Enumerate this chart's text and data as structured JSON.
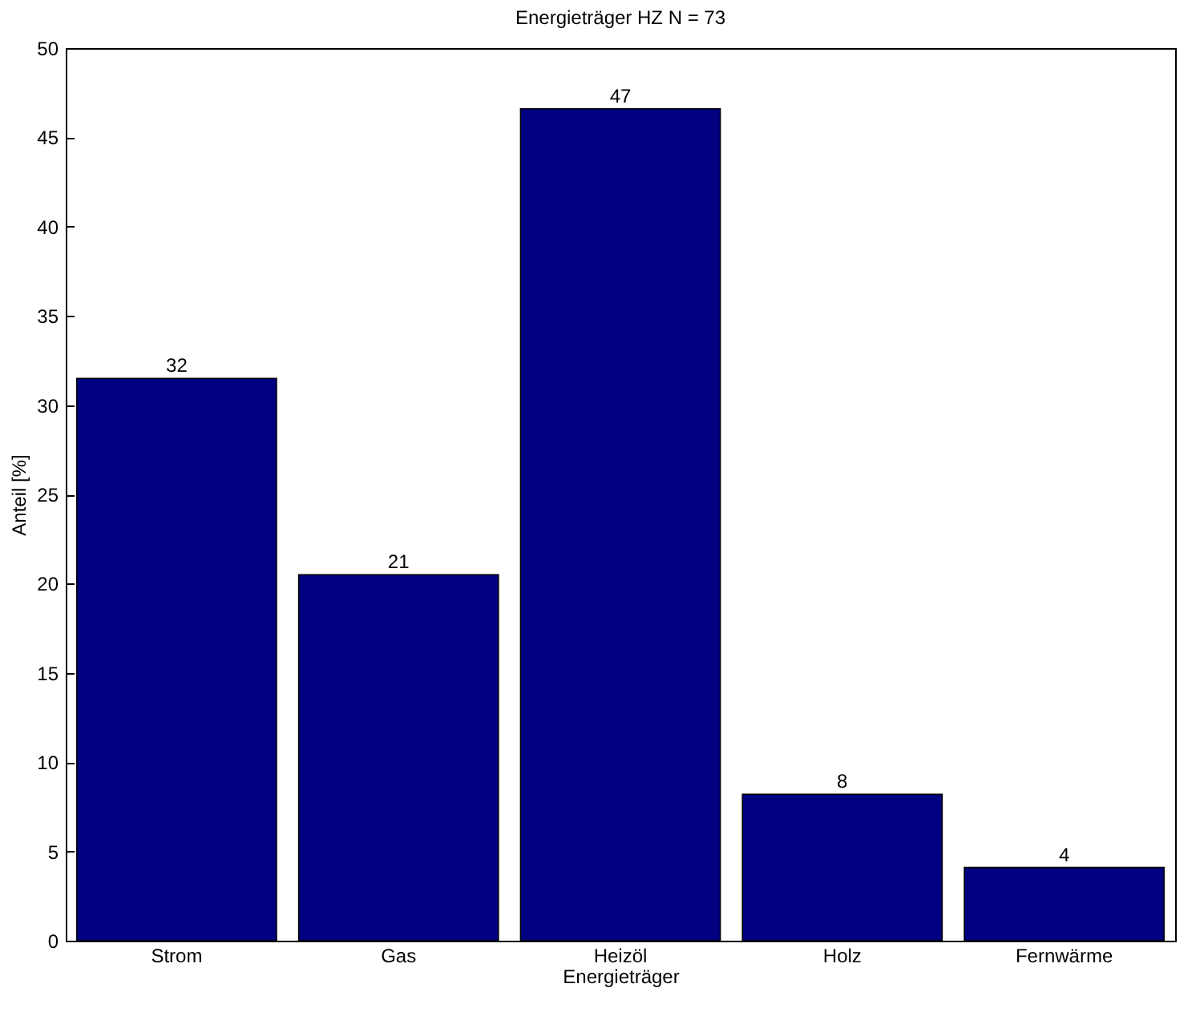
{
  "chart_data": {
    "type": "bar",
    "title": "Energieträger HZ N = 73",
    "xlabel": "Energieträger",
    "ylabel": "Anteil [%]",
    "categories": [
      "Strom",
      "Gas",
      "Heizöl",
      "Holz",
      "Fernwärme"
    ],
    "values": [
      31.5,
      20.5,
      46.6,
      8.2,
      4.1
    ],
    "value_labels": [
      "32",
      "21",
      "47",
      "8",
      "4"
    ],
    "color": "#000080",
    "ylim": [
      0,
      50
    ],
    "yticks": [
      0,
      5,
      10,
      15,
      20,
      25,
      30,
      35,
      40,
      45,
      50
    ],
    "grid": false
  }
}
